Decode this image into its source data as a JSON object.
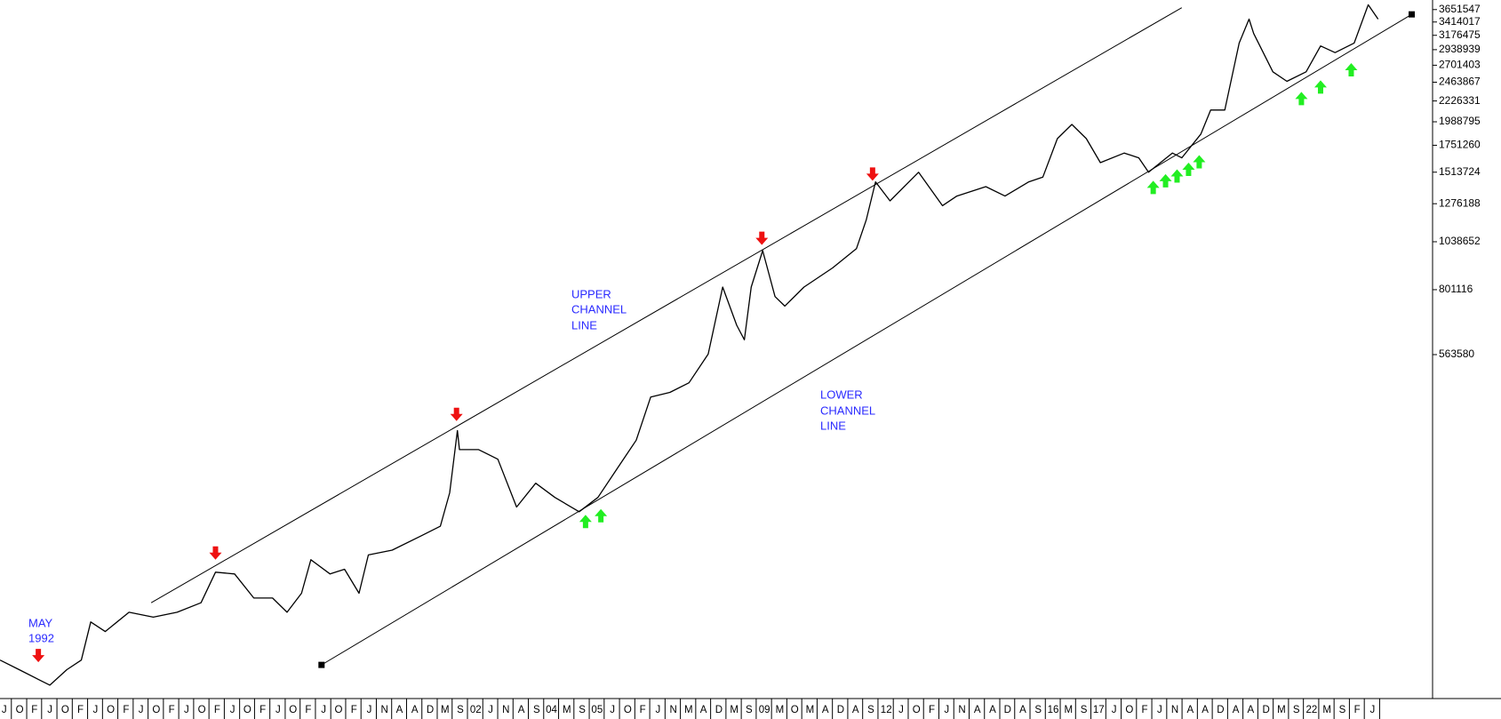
{
  "chart_data": {
    "type": "line",
    "log_scale": true,
    "xlim": [
      1991.0,
      2024.64
    ],
    "ylim": [
      87500,
      3846000
    ],
    "yticks": [
      3651547,
      3414017,
      3176475,
      2938939,
      2701403,
      2463867,
      2226331,
      1988795,
      1751260,
      1513724,
      1276188,
      1038652,
      801116,
      563580
    ],
    "xticks": [
      {
        "value": 1991.1,
        "label": "J"
      },
      {
        "value": 1991.46,
        "label": "O"
      },
      {
        "value": 1991.81,
        "label": "F"
      },
      {
        "value": 1992.17,
        "label": "J"
      },
      {
        "value": 1992.53,
        "label": "O"
      },
      {
        "value": 1992.89,
        "label": "F"
      },
      {
        "value": 1993.24,
        "label": "J"
      },
      {
        "value": 1993.6,
        "label": "O"
      },
      {
        "value": 1993.96,
        "label": "F"
      },
      {
        "value": 1994.31,
        "label": "J"
      },
      {
        "value": 1994.67,
        "label": "O"
      },
      {
        "value": 1995.03,
        "label": "F"
      },
      {
        "value": 1995.38,
        "label": "J"
      },
      {
        "value": 1995.74,
        "label": "O"
      },
      {
        "value": 1996.1,
        "label": "F"
      },
      {
        "value": 1996.46,
        "label": "J"
      },
      {
        "value": 1996.81,
        "label": "O"
      },
      {
        "value": 1997.17,
        "label": "F"
      },
      {
        "value": 1997.53,
        "label": "J"
      },
      {
        "value": 1997.88,
        "label": "O"
      },
      {
        "value": 1998.24,
        "label": "F"
      },
      {
        "value": 1998.6,
        "label": "J"
      },
      {
        "value": 1998.95,
        "label": "O"
      },
      {
        "value": 1999.31,
        "label": "F"
      },
      {
        "value": 1999.67,
        "label": "J"
      },
      {
        "value": 2000.03,
        "label": "N"
      },
      {
        "value": 2000.38,
        "label": "A"
      },
      {
        "value": 2000.74,
        "label": "A"
      },
      {
        "value": 2001.1,
        "label": "D"
      },
      {
        "value": 2001.45,
        "label": "M"
      },
      {
        "value": 2001.81,
        "label": "S"
      },
      {
        "value": 2002.17,
        "label": "02"
      },
      {
        "value": 2002.52,
        "label": "J"
      },
      {
        "value": 2002.88,
        "label": "N"
      },
      {
        "value": 2003.24,
        "label": "A"
      },
      {
        "value": 2003.6,
        "label": "S"
      },
      {
        "value": 2003.95,
        "label": "04"
      },
      {
        "value": 2004.31,
        "label": "M"
      },
      {
        "value": 2004.67,
        "label": "S"
      },
      {
        "value": 2005.02,
        "label": "05"
      },
      {
        "value": 2005.38,
        "label": "J"
      },
      {
        "value": 2005.74,
        "label": "O"
      },
      {
        "value": 2006.09,
        "label": "F"
      },
      {
        "value": 2006.45,
        "label": "J"
      },
      {
        "value": 2006.81,
        "label": "N"
      },
      {
        "value": 2007.17,
        "label": "M"
      },
      {
        "value": 2007.52,
        "label": "A"
      },
      {
        "value": 2007.88,
        "label": "D"
      },
      {
        "value": 2008.24,
        "label": "M"
      },
      {
        "value": 2008.59,
        "label": "S"
      },
      {
        "value": 2008.95,
        "label": "09"
      },
      {
        "value": 2009.31,
        "label": "M"
      },
      {
        "value": 2009.66,
        "label": "O"
      },
      {
        "value": 2010.02,
        "label": "M"
      },
      {
        "value": 2010.38,
        "label": "A"
      },
      {
        "value": 2010.74,
        "label": "D"
      },
      {
        "value": 2011.09,
        "label": "A"
      },
      {
        "value": 2011.45,
        "label": "S"
      },
      {
        "value": 2011.81,
        "label": "12"
      },
      {
        "value": 2012.16,
        "label": "J"
      },
      {
        "value": 2012.52,
        "label": "O"
      },
      {
        "value": 2012.88,
        "label": "F"
      },
      {
        "value": 2013.23,
        "label": "J"
      },
      {
        "value": 2013.59,
        "label": "N"
      },
      {
        "value": 2013.95,
        "label": "A"
      },
      {
        "value": 2014.31,
        "label": "A"
      },
      {
        "value": 2014.66,
        "label": "D"
      },
      {
        "value": 2015.02,
        "label": "A"
      },
      {
        "value": 2015.38,
        "label": "S"
      },
      {
        "value": 2015.73,
        "label": "16"
      },
      {
        "value": 2016.09,
        "label": "M"
      },
      {
        "value": 2016.45,
        "label": "S"
      },
      {
        "value": 2016.8,
        "label": "17"
      },
      {
        "value": 2017.16,
        "label": "J"
      },
      {
        "value": 2017.52,
        "label": "O"
      },
      {
        "value": 2017.88,
        "label": "F"
      },
      {
        "value": 2018.23,
        "label": "J"
      },
      {
        "value": 2018.59,
        "label": "N"
      },
      {
        "value": 2018.95,
        "label": "A"
      },
      {
        "value": 2019.3,
        "label": "A"
      },
      {
        "value": 2019.66,
        "label": "D"
      },
      {
        "value": 2020.02,
        "label": "A"
      },
      {
        "value": 2020.37,
        "label": "A"
      },
      {
        "value": 2020.73,
        "label": "D"
      },
      {
        "value": 2021.09,
        "label": "M"
      },
      {
        "value": 2021.44,
        "label": "S"
      },
      {
        "value": 2021.8,
        "label": "22"
      },
      {
        "value": 2022.16,
        "label": "M"
      },
      {
        "value": 2022.52,
        "label": "S"
      },
      {
        "value": 2022.87,
        "label": "F"
      },
      {
        "value": 2023.23,
        "label": "J"
      }
    ],
    "series": [
      {
        "color": "#000000",
        "x": [
          1991.0,
          1991.45,
          1991.9,
          1992.17,
          1992.57,
          1992.91,
          1993.13,
          1993.47,
          1994.03,
          1994.6,
          1995.16,
          1995.72,
          1996.06,
          1996.51,
          1996.96,
          1997.4,
          1997.74,
          1998.08,
          1998.3,
          1998.75,
          1999.09,
          1999.43,
          1999.65,
          2000.21,
          2000.89,
          2001.34,
          2001.56,
          2001.74,
          2001.79,
          2002.24,
          2002.69,
          2003.13,
          2003.58,
          2004.03,
          2004.6,
          2005.04,
          2005.49,
          2005.94,
          2006.28,
          2006.73,
          2007.18,
          2007.63,
          2007.97,
          2008.3,
          2008.48,
          2008.64,
          2008.91,
          2009.2,
          2009.43,
          2009.88,
          2010.55,
          2011.11,
          2011.34,
          2011.56,
          2011.9,
          2012.57,
          2013.13,
          2013.47,
          2014.15,
          2014.6,
          2015.16,
          2015.49,
          2015.83,
          2016.17,
          2016.51,
          2016.84,
          2017.4,
          2017.74,
          2017.97,
          2018.53,
          2018.75,
          2019.2,
          2019.43,
          2019.76,
          2020.1,
          2020.33,
          2020.44,
          2020.89,
          2021.22,
          2021.67,
          2022.01,
          2022.35,
          2022.8,
          2023.13,
          2023.36
        ],
        "values": [
          107800,
          102300,
          97100,
          94100,
          102300,
          107800,
          132500,
          125800,
          139600,
          136000,
          139600,
          147000,
          173500,
          171800,
          150800,
          150800,
          139600,
          154800,
          185600,
          171800,
          176300,
          154800,
          190500,
          195500,
          211200,
          222500,
          266700,
          373500,
          336900,
          336900,
          319900,
          246900,
          280900,
          260000,
          240600,
          260000,
          303700,
          354600,
          448000,
          459300,
          483800,
          565300,
          812500,
          660600,
          610900,
          812500,
          989600,
          771600,
          732900,
          812500,
          901200,
          1000200,
          1167800,
          1436500,
          1296000,
          1513000,
          1262700,
          1329900,
          1399600,
          1329900,
          1436500,
          1474500,
          1814800,
          1960500,
          1814800,
          1593900,
          1679000,
          1635900,
          1513000,
          1679000,
          1635900,
          1861200,
          2119400,
          2119400,
          3046800,
          3467100,
          3207900,
          2607200,
          2475400,
          2607200,
          2998700,
          2892400,
          3046800,
          3747200,
          3467100
        ]
      }
    ],
    "channels": [
      {
        "x": [
          1994.55,
          2018.75
        ],
        "values": [
          147000,
          3689500
        ],
        "label": [
          "UPPER",
          "CHANNEL",
          "LINE"
        ]
      },
      {
        "x": [
          1998.55,
          2024.15
        ],
        "values": [
          105000,
          3558000
        ],
        "label": [
          "LOWER",
          "CHANNEL",
          "LINE"
        ]
      }
    ],
    "sell_arrows": {
      "color": "#ee1111",
      "x": [
        1991.9,
        1996.06,
        2001.72,
        2008.89,
        2011.49
      ],
      "values": [
        106500,
        185600,
        393400,
        1020600,
        1445000
      ]
    },
    "buy_arrows": {
      "color": "#22ee22",
      "x": [
        2004.75,
        2005.11,
        2018.08,
        2018.37,
        2018.64,
        2018.91,
        2019.16,
        2021.56,
        2022.01,
        2022.73
      ],
      "values": [
        236700,
        244200,
        1445000,
        1498000,
        1537000,
        1594000,
        1661000,
        2338000,
        2489000,
        2732000
      ]
    },
    "annotation": [
      "MAY",
      "1992"
    ]
  }
}
